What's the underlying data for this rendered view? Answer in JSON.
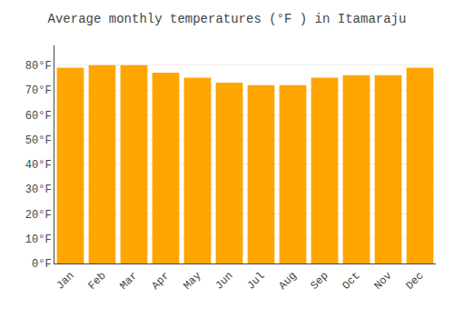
{
  "chart_data": {
    "type": "bar",
    "title": "Average monthly temperatures (°F ) in Itamaraju",
    "categories": [
      "Jan",
      "Feb",
      "Mar",
      "Apr",
      "May",
      "Jun",
      "Jul",
      "Aug",
      "Sep",
      "Oct",
      "Nov",
      "Dec"
    ],
    "values": [
      79,
      80,
      80,
      77,
      75,
      73,
      72,
      72,
      75,
      76,
      76,
      79
    ],
    "color": "#FFA500",
    "ylim": [
      0,
      88
    ],
    "yticks": [
      {
        "value": 0,
        "label": "0°F"
      },
      {
        "value": 10,
        "label": "10°F"
      },
      {
        "value": 20,
        "label": "20°F"
      },
      {
        "value": 30,
        "label": "30°F"
      },
      {
        "value": 40,
        "label": "40°F"
      },
      {
        "value": 50,
        "label": "50°F"
      },
      {
        "value": 60,
        "label": "60°F"
      },
      {
        "value": 70,
        "label": "70°F"
      },
      {
        "value": 80,
        "label": "80°F"
      }
    ],
    "grid": true
  }
}
